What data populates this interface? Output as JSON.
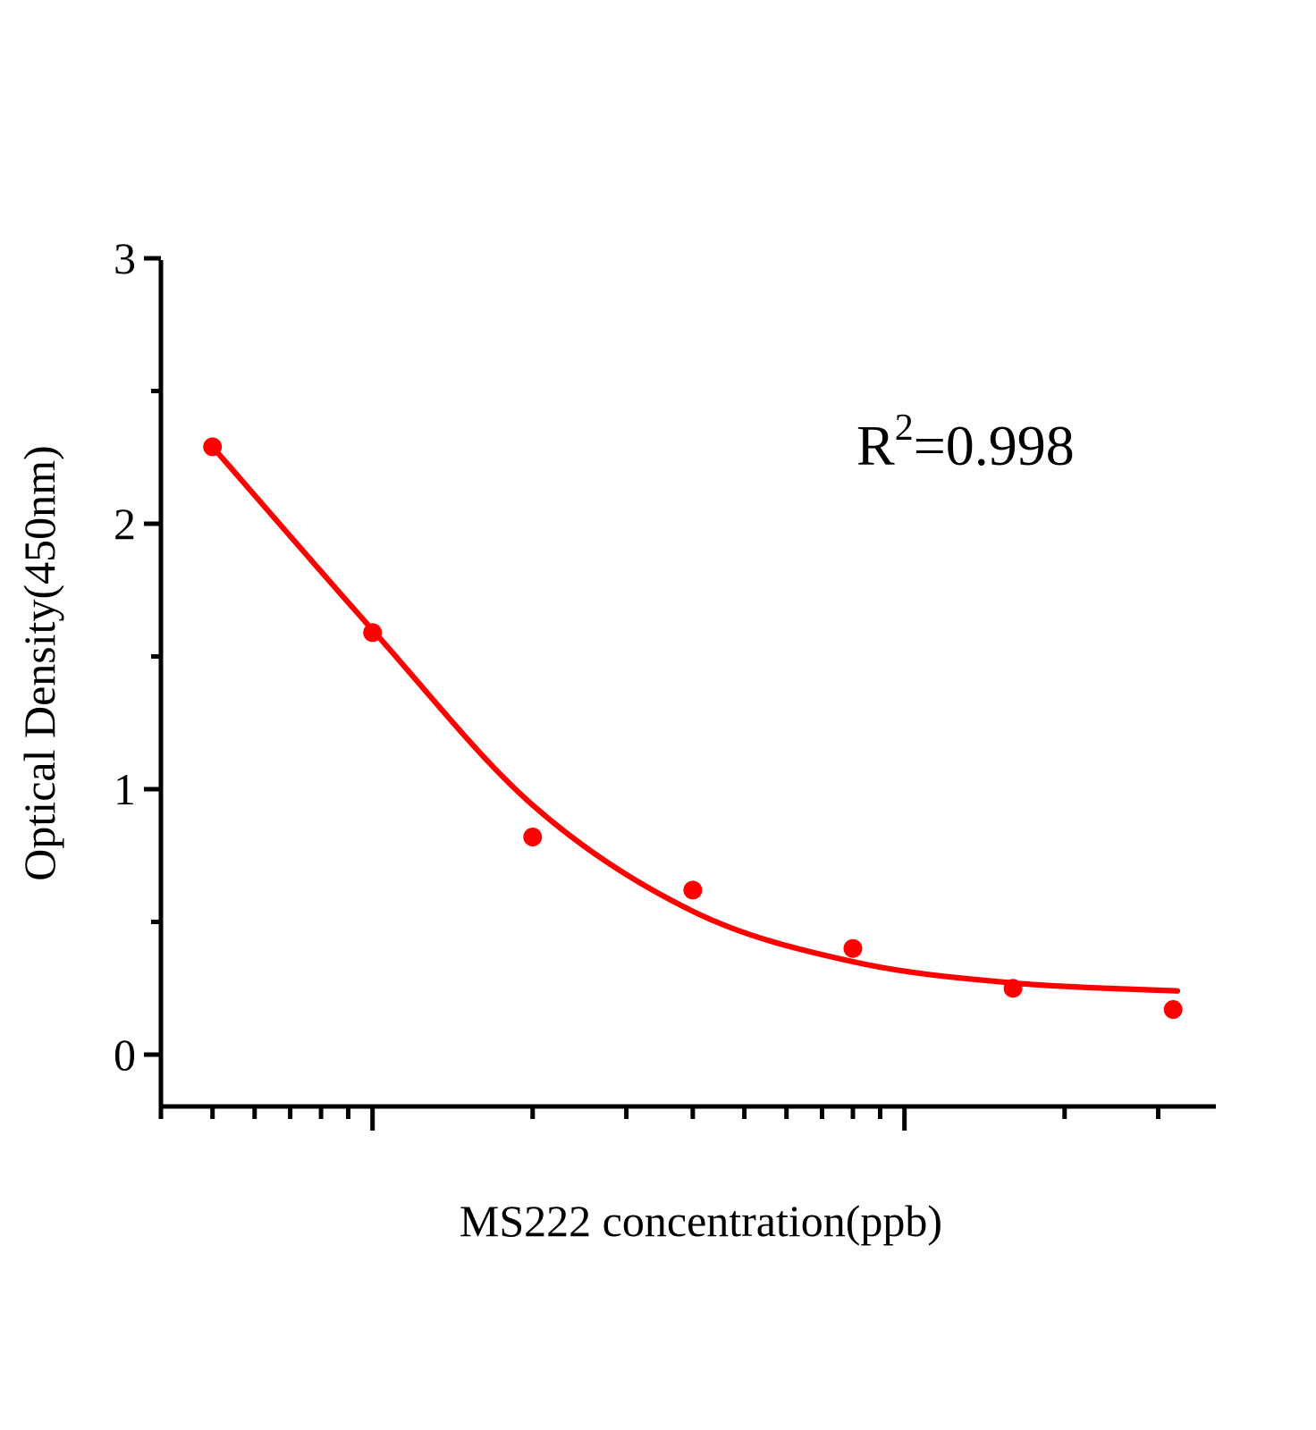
{
  "chart_data": {
    "type": "scatter",
    "title": "",
    "xlabel": "MS222 concentration(ppb)",
    "ylabel": "Optical Density(450nm)",
    "x_scale": "log",
    "xlim": [
      0.4,
      38.5
    ],
    "ylim": [
      0,
      3
    ],
    "grid": false,
    "legend": false,
    "x_tick_labels_visible": false,
    "xticks_major": [
      1,
      10
    ],
    "xticks_minor": [
      0.4,
      0.5,
      0.6,
      0.7,
      0.8,
      0.9,
      2,
      3,
      4,
      5,
      6,
      7,
      8,
      9,
      20,
      30
    ],
    "yticks_major": [
      0,
      1,
      2,
      3
    ],
    "ytick_labels": [
      "0",
      "1",
      "2",
      "3"
    ],
    "yticks_minor": [
      0.5,
      1.5,
      2.5
    ],
    "series": [
      {
        "name": "standard-points",
        "type": "scatter",
        "marker": "circle",
        "color": "#fe0000",
        "points": [
          {
            "x": 0.5,
            "y": 2.29
          },
          {
            "x": 1,
            "y": 1.59
          },
          {
            "x": 2,
            "y": 0.82
          },
          {
            "x": 4,
            "y": 0.62
          },
          {
            "x": 8,
            "y": 0.4
          },
          {
            "x": 16,
            "y": 0.25
          },
          {
            "x": 32,
            "y": 0.17
          }
        ]
      },
      {
        "name": "fitted-curve",
        "type": "line",
        "color": "#fe0000",
        "points": [
          {
            "x": 0.5,
            "y": 2.29
          },
          {
            "x": 1,
            "y": 1.6
          },
          {
            "x": 2,
            "y": 0.94
          },
          {
            "x": 4,
            "y": 0.54
          },
          {
            "x": 8,
            "y": 0.35
          },
          {
            "x": 16,
            "y": 0.27
          },
          {
            "x": 32.6,
            "y": 0.24
          }
        ]
      }
    ],
    "annotation": {
      "base": "R",
      "sup": "2",
      "rest": "=0.998"
    }
  },
  "colors": {
    "curve_red": "#fe0000",
    "axis_black": "#000000",
    "background": "#ffffff"
  }
}
